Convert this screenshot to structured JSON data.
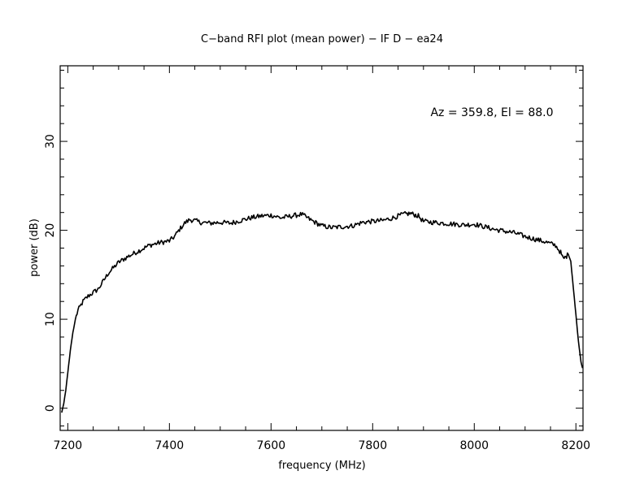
{
  "chart_data": {
    "type": "line",
    "title": "C−band RFI plot (mean power) − IF D − ea24",
    "xlabel": "frequency (MHz)",
    "ylabel": "power (dB)",
    "annotation": "Az = 359.8, El = 88.0",
    "xlim": [
      7185,
      8214
    ],
    "ylim": [
      -2.5,
      38.5
    ],
    "xticks": [
      7200,
      7400,
      7600,
      7800,
      8000,
      8200
    ],
    "yticks": [
      0,
      10,
      20,
      30
    ],
    "xtick_labels": [
      "7200",
      "7400",
      "7600",
      "7800",
      "8000",
      "8200"
    ],
    "ytick_labels": [
      "0",
      "10",
      "20",
      "30"
    ],
    "grid": false,
    "line_color": "#000000",
    "series": [
      {
        "x": [
          7188,
          7192,
          7196,
          7200,
          7205,
          7210,
          7215,
          7220,
          7230,
          7240,
          7250,
          7260,
          7270,
          7280,
          7290,
          7300,
          7320,
          7340,
          7360,
          7380,
          7400,
          7410,
          7420,
          7430,
          7440,
          7450,
          7460,
          7480,
          7500,
          7520,
          7540,
          7560,
          7580,
          7600,
          7620,
          7640,
          7660,
          7680,
          7700,
          7720,
          7740,
          7760,
          7780,
          7800,
          7820,
          7840,
          7860,
          7875,
          7890,
          7900,
          7920,
          7940,
          7960,
          7980,
          8000,
          8020,
          8040,
          8060,
          8080,
          8100,
          8120,
          8140,
          8160,
          8170,
          8175,
          8180,
          8185,
          8190,
          8195,
          8200,
          8205,
          8210,
          8213
        ],
        "y": [
          -0.5,
          0.5,
          2.0,
          4.0,
          6.5,
          8.5,
          10.0,
          11.0,
          12.0,
          12.6,
          13.0,
          13.4,
          14.3,
          15.2,
          15.8,
          16.4,
          17.1,
          17.7,
          18.3,
          18.6,
          18.8,
          19.3,
          20.1,
          20.8,
          21.2,
          21.1,
          20.9,
          20.8,
          20.9,
          20.8,
          21.1,
          21.4,
          21.6,
          21.7,
          21.4,
          21.6,
          21.8,
          21.1,
          20.5,
          20.3,
          20.4,
          20.5,
          20.9,
          21.0,
          21.1,
          21.4,
          21.8,
          21.9,
          21.6,
          21.0,
          20.9,
          20.8,
          20.7,
          20.6,
          20.7,
          20.4,
          20.1,
          19.9,
          19.7,
          19.3,
          19.0,
          18.7,
          18.3,
          17.5,
          16.8,
          17.0,
          17.3,
          16.5,
          13.5,
          10.5,
          7.5,
          5.2,
          4.5
        ]
      }
    ]
  }
}
